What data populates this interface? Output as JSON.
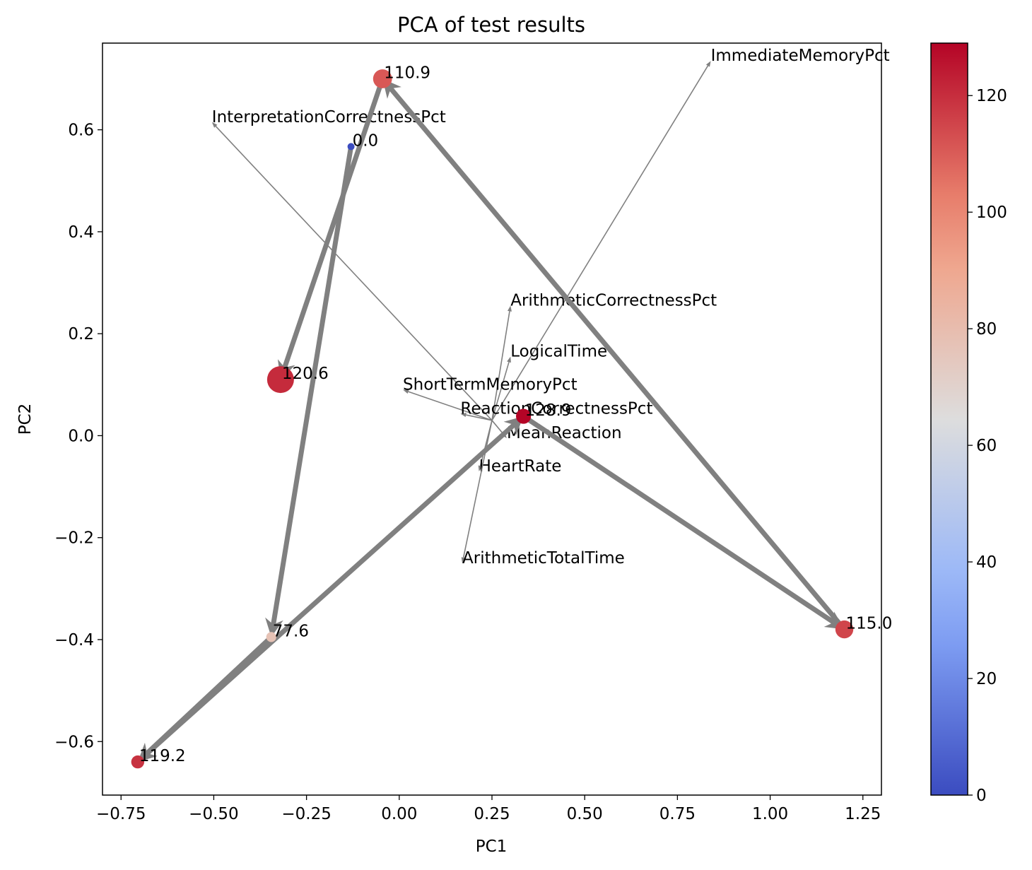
{
  "chart_data": {
    "type": "scatter",
    "title": "PCA of test results",
    "xlabel": "PC1",
    "ylabel": "PC2",
    "xlim": [
      -0.8,
      1.3
    ],
    "ylim": [
      -0.705,
      0.77
    ],
    "xticks": [
      -0.75,
      -0.5,
      -0.25,
      0.0,
      0.25,
      0.5,
      0.75,
      1.0,
      1.25
    ],
    "xtick_labels": [
      "−0.75",
      "−0.50",
      "−0.25",
      "0.00",
      "0.25",
      "0.50",
      "0.75",
      "1.00",
      "1.25"
    ],
    "yticks": [
      -0.6,
      -0.4,
      -0.2,
      0.0,
      0.2,
      0.4,
      0.6
    ],
    "ytick_labels": [
      "−0.6",
      "−0.4",
      "−0.2",
      "0.0",
      "0.2",
      "0.4",
      "0.6"
    ],
    "grid": false,
    "colormap": "coolwarm",
    "colorbar": {
      "min": 0,
      "max": 129,
      "ticks": [
        0,
        20,
        40,
        60,
        80,
        100,
        120
      ],
      "tick_labels": [
        "0",
        "20",
        "40",
        "60",
        "80",
        "100",
        "120"
      ]
    },
    "points": [
      {
        "x": -0.045,
        "y": 0.7,
        "value": 110.9,
        "label": "110.9",
        "size": 0.6
      },
      {
        "x": -0.13,
        "y": 0.567,
        "value": 0.0,
        "label": "0.0",
        "size": 0.0
      },
      {
        "x": -0.32,
        "y": 0.11,
        "value": 120.6,
        "label": "120.6",
        "size": 1.0
      },
      {
        "x": 0.335,
        "y": 0.038,
        "value": 128.9,
        "label": "128.9",
        "size": 0.4
      },
      {
        "x": -0.345,
        "y": -0.395,
        "value": 77.6,
        "label": "77.6",
        "size": 0.15
      },
      {
        "x": 1.2,
        "y": -0.38,
        "value": 115.0,
        "label": "115.0",
        "size": 0.55
      },
      {
        "x": -0.705,
        "y": -0.64,
        "value": 119.2,
        "label": "119.2",
        "size": 0.3
      }
    ],
    "trajectory": [
      {
        "from": "0.0",
        "to": "77.6"
      },
      {
        "from": "77.6",
        "to": "119.2"
      },
      {
        "from": "119.2",
        "to": "128.9"
      },
      {
        "from": "128.9",
        "to": "115.0"
      },
      {
        "from": "115.0",
        "to": "110.9"
      },
      {
        "from": "110.9",
        "to": "120.6"
      }
    ],
    "loading_origin": {
      "x": 0.25,
      "y": 0.03
    },
    "loadings": [
      {
        "name": "ImmediateMemoryPct",
        "x": 0.84,
        "y": 0.735
      },
      {
        "name": "InterpretationCorrectnessPct",
        "x": -0.505,
        "y": 0.615
      },
      {
        "name": "ArithmeticCorrectnessPct",
        "x": 0.3,
        "y": 0.255
      },
      {
        "name": "LogicalTime",
        "x": 0.3,
        "y": 0.155
      },
      {
        "name": "ShortTermMemoryPct",
        "x": 0.01,
        "y": 0.09
      },
      {
        "name": "ReactionCorrectnessPct",
        "x": 0.165,
        "y": 0.043
      },
      {
        "name": "MeanReaction",
        "x": 0.29,
        "y": -0.005
      },
      {
        "name": "HeartRate",
        "x": 0.215,
        "y": -0.07
      },
      {
        "name": "ArithmeticTotalTime",
        "x": 0.17,
        "y": -0.25
      }
    ]
  }
}
